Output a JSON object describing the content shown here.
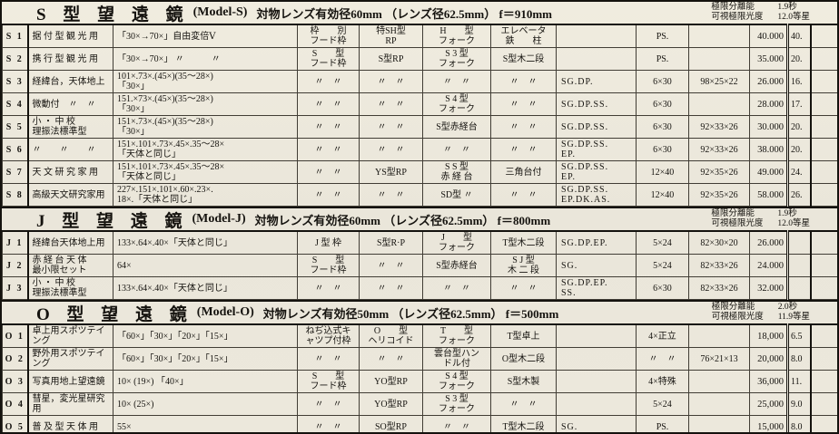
{
  "columns": [
    {
      "key": "no"
    },
    {
      "key": "use"
    },
    {
      "key": "mag"
    },
    {
      "key": "hood"
    },
    {
      "key": "rp"
    },
    {
      "key": "fork"
    },
    {
      "key": "stand"
    },
    {
      "key": "acc"
    },
    {
      "key": "finder"
    },
    {
      "key": "case"
    },
    {
      "key": "price"
    },
    {
      "key": "wt"
    },
    {
      "key": "blank"
    }
  ],
  "sections": [
    {
      "title_model": "S 型 望 遠 鏡",
      "title_sub": "(Model-S)",
      "title_spec": "対物レンズ有効径60mm （レンズ径62.5mm） f＝910mm",
      "limits": [
        {
          "label": "極限分離能",
          "value": "1.9秒"
        },
        {
          "label": "可視極限光度",
          "value": "12.0等星"
        }
      ],
      "rows": [
        {
          "no": "S 1",
          "use": "据 付 型 観 光 用",
          "mag": "「30×→70×」自由変倍Ⅴ",
          "hood": "枠　　別\nフード枠",
          "rp": "特SH型\nRP",
          "fork": "H　　型\nフォーク",
          "stand": "エレベータ\n鉄　　柱",
          "acc": "",
          "finder": "PS.",
          "case": "",
          "price": "40.000",
          "wt": "40.",
          "blank": ""
        },
        {
          "no": "S 2",
          "use": "携 行 型 観 光 用",
          "mag": "「30×→70×」 〃　　　〃",
          "hood": "S　　型\nフード枠",
          "rp": "S型RP",
          "fork": "S 3 型\nフォーク",
          "stand": "S型木二段",
          "acc": "",
          "finder": "PS.",
          "case": "",
          "price": "35.000",
          "wt": "20.",
          "blank": ""
        },
        {
          "no": "S 3",
          "use": "経緯台，天体地上",
          "mag": "101×.73×.(45×)(35～28×)\n「30×」",
          "hood": "〃　〃",
          "rp": "〃　〃",
          "fork": "〃　〃",
          "stand": "〃　〃",
          "acc": "SG.DP.",
          "finder": "6×30",
          "case": "98×25×22",
          "price": "26.000",
          "wt": "16.",
          "blank": ""
        },
        {
          "no": "S 4",
          "use": "微動付　〃　〃",
          "mag": "151.×73×.(45×)(35～28×)\n「30×」",
          "hood": "〃　〃",
          "rp": "〃　〃",
          "fork": "S 4 型\nフォーク",
          "stand": "〃　〃",
          "acc": "SG.DP.SS.",
          "finder": "6×30",
          "case": "",
          "price": "28.000",
          "wt": "17.",
          "blank": ""
        },
        {
          "no": "S 5",
          "use": "小 ・ 中 校\n理振法標準型",
          "mag": "151×.73×.(45×)(35～28×)\n「30×」",
          "hood": "〃　〃",
          "rp": "〃　〃",
          "fork": "S型赤経台",
          "stand": "〃　〃",
          "acc": "SG.DP.SS.",
          "finder": "6×30",
          "case": "92×33×26",
          "price": "30.000",
          "wt": "20.",
          "blank": ""
        },
        {
          "no": "S 6",
          "use": "〃　　〃　　〃",
          "mag": "151×.101×.73×.45×.35～28×\n「天体と同じ」",
          "hood": "〃　〃",
          "rp": "〃　〃",
          "fork": "〃　〃",
          "stand": "〃　〃",
          "acc": "SG.DP.SS.\nEP.",
          "finder": "6×30",
          "case": "92×33×26",
          "price": "38.000",
          "wt": "20.",
          "blank": ""
        },
        {
          "no": "S 7",
          "use": "天 文 研 究 家 用",
          "mag": "151×.101×.73×.45×.35～28×\n「天体と同じ」",
          "hood": "〃　〃",
          "rp": "YS型RP",
          "fork": "S S 型\n赤 経 台",
          "stand": "三角台付",
          "acc": "SG.DP.SS.\nEP.",
          "finder": "12×40",
          "case": "92×35×26",
          "price": "49.000",
          "wt": "24.",
          "blank": ""
        },
        {
          "no": "S 8",
          "use": "高級天文研究家用",
          "mag": "227×.151×.101×.60×.23×.\n18×.「天体と同じ」",
          "hood": "〃　〃",
          "rp": "〃　〃",
          "fork": "SD型 〃",
          "stand": "〃　〃",
          "acc": "SG.DP.SS.\nEP.DK.AS.",
          "finder": "12×40",
          "case": "92×35×26",
          "price": "58.000",
          "wt": "26.",
          "blank": ""
        }
      ]
    },
    {
      "title_model": "J 型 望 遠 鏡",
      "title_sub": "(Model-J)",
      "title_spec": "対物レンズ有効径60mm （レンズ径62.5mm） f＝800mm",
      "limits": [
        {
          "label": "極限分離能",
          "value": "1.9秒"
        },
        {
          "label": "可視極限光度",
          "value": "12.0等星"
        }
      ],
      "rows": [
        {
          "no": "J 1",
          "use": "経緯台天体地上用",
          "mag": "133×.64×.40×「天体と同じ」",
          "hood": "J 型 枠",
          "rp": "S型R·P",
          "fork": "J　　型\nフォーク",
          "stand": "T型木二段",
          "acc": "SG.DP.EP.",
          "finder": "5×24",
          "case": "82×30×20",
          "price": "26.000",
          "wt": "",
          "blank": ""
        },
        {
          "no": "J 2",
          "use": "赤 経 台 天 体\n最小限セット",
          "mag": "64×",
          "hood": "S　　型\nフード枠",
          "rp": "〃　〃",
          "fork": "S型赤経台",
          "stand": "S J 型\n木 二 段",
          "acc": "SG.",
          "finder": "5×24",
          "case": "82×33×26",
          "price": "24.000",
          "wt": "",
          "blank": ""
        },
        {
          "no": "J 3",
          "use": "小 ・ 中 校\n理振法標準型",
          "mag": "133×.64×.40×「天体と同じ」",
          "hood": "〃　〃",
          "rp": "〃　〃",
          "fork": "〃　〃",
          "stand": "〃　〃",
          "acc": "SG.DP.EP.\nSS.",
          "finder": "6×30",
          "case": "82×33×26",
          "price": "32.000",
          "wt": "",
          "blank": ""
        }
      ]
    },
    {
      "title_model": "O 型 望 遠 鏡",
      "title_sub": "(Model-O)",
      "title_spec": "対物レンズ有効径50mm （レンズ径62.5mm） f＝500mm",
      "limits": [
        {
          "label": "極限分離能",
          "value": "2.0秒"
        },
        {
          "label": "可視極限光度",
          "value": "11.9等星"
        }
      ],
      "rows": [
        {
          "no": "O 1",
          "use": "卓上用スポツテイ\nング",
          "mag": "「60×」「30×」「20×」「15×」",
          "hood": "ねぢ込式キ\nャツプ付枠",
          "rp": "O　　型\nヘリコイド",
          "fork": "T　　型\nフォーク",
          "stand": "T型卓上",
          "acc": "",
          "finder": "4×正立",
          "case": "",
          "price": "18,000",
          "wt": "6.5",
          "blank": ""
        },
        {
          "no": "O 2",
          "use": "野外用スポツテイ\nング",
          "mag": "「60×」「30×」「20×」「15×」",
          "hood": "〃　〃",
          "rp": "〃　〃",
          "fork": "雲台型ハン\nドル付",
          "stand": "O型木二段",
          "acc": "",
          "finder": "〃　〃",
          "case": "76×21×13",
          "price": "20,000",
          "wt": "8.0",
          "blank": ""
        },
        {
          "no": "O 3",
          "use": "写真用地上望遠鏡",
          "mag": "10× (19×) 「40×」",
          "hood": "S　　型\nフード枠",
          "rp": "YO型RP",
          "fork": "S 4 型\nフォーク",
          "stand": "S型木製",
          "acc": "",
          "finder": "4×特殊",
          "case": "",
          "price": "36,000",
          "wt": "11.",
          "blank": ""
        },
        {
          "no": "O 4",
          "use": "彗星，変光星研究\n用",
          "mag": "10× (25×)",
          "hood": "〃　〃",
          "rp": "YO型RP",
          "fork": "S 3 型\nフォーク",
          "stand": "〃　〃",
          "acc": "",
          "finder": "5×24",
          "case": "",
          "price": "25,000",
          "wt": "9.0",
          "blank": ""
        },
        {
          "no": "O 5",
          "use": "普 及 型 天 体 用",
          "mag": "55×",
          "hood": "〃　〃",
          "rp": "SO型RP",
          "fork": "〃　〃",
          "stand": "T型木二段",
          "acc": "SG.",
          "finder": "PS.",
          "case": "",
          "price": "15,000",
          "wt": "8.0",
          "blank": ""
        }
      ]
    }
  ]
}
